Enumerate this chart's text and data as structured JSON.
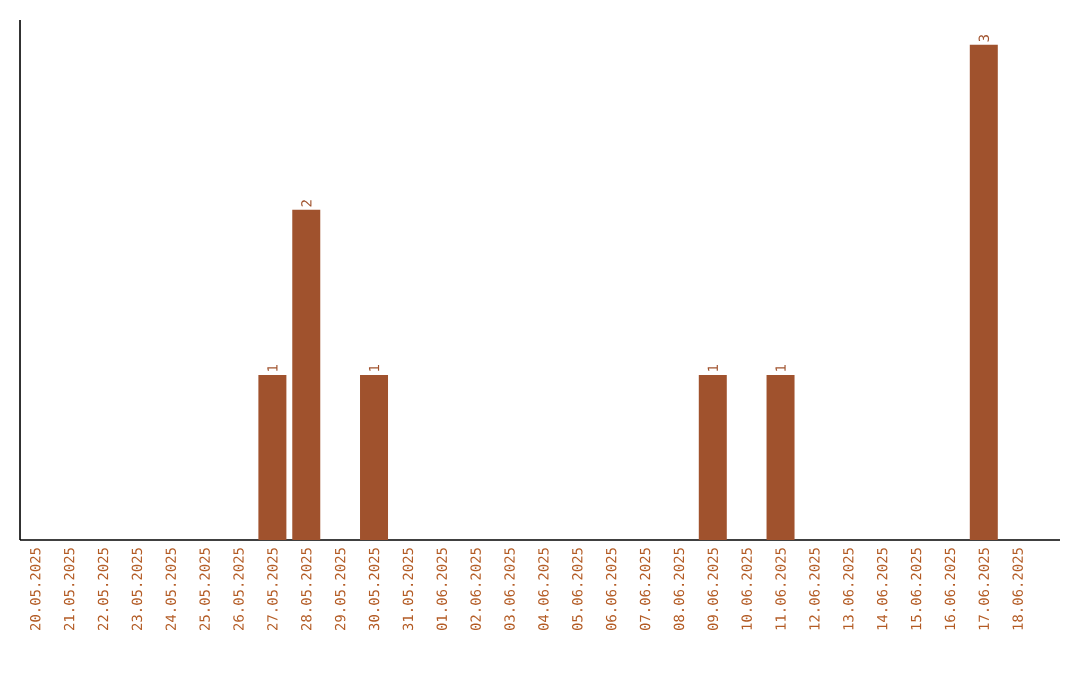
{
  "chart_data": {
    "type": "bar",
    "categories": [
      "20.05.2025",
      "21.05.2025",
      "22.05.2025",
      "23.05.2025",
      "24.05.2025",
      "25.05.2025",
      "26.05.2025",
      "27.05.2025",
      "28.05.2025",
      "29.05.2025",
      "30.05.2025",
      "31.05.2025",
      "01.06.2025",
      "02.06.2025",
      "03.06.2025",
      "04.06.2025",
      "05.06.2025",
      "06.06.2025",
      "07.06.2025",
      "08.06.2025",
      "09.06.2025",
      "10.06.2025",
      "11.06.2025",
      "12.06.2025",
      "13.06.2025",
      "14.06.2025",
      "15.06.2025",
      "16.06.2025",
      "17.06.2025",
      "18.06.2025"
    ],
    "values": [
      0,
      0,
      0,
      0,
      0,
      0,
      0,
      1,
      2,
      0,
      1,
      0,
      0,
      0,
      0,
      0,
      0,
      0,
      0,
      0,
      1,
      0,
      1,
      0,
      0,
      0,
      0,
      0,
      3,
      0
    ],
    "value_labels": [
      null,
      null,
      null,
      null,
      null,
      null,
      null,
      "1",
      "2",
      null,
      "1",
      null,
      null,
      null,
      null,
      null,
      null,
      null,
      null,
      null,
      "1",
      null,
      "1",
      null,
      null,
      null,
      null,
      null,
      "3",
      null
    ],
    "color": "#a0522d"
  }
}
